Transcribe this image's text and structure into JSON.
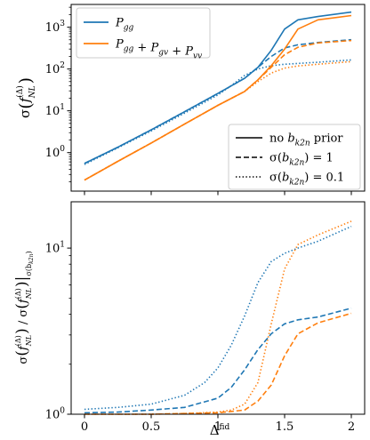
{
  "chart_data": [
    {
      "type": "line",
      "ylabel": "σ(f_NL^(Δ))",
      "yscale": "log",
      "ylim": [
        0.12,
        3500
      ],
      "xlim": [
        -0.1,
        2.1
      ],
      "yticks": [
        {
          "value": 1,
          "base": "10",
          "exp": "0"
        },
        {
          "value": 10,
          "base": "10",
          "exp": "1"
        },
        {
          "value": 100,
          "base": "10",
          "exp": "2"
        },
        {
          "value": 1000,
          "base": "10",
          "exp": "3"
        }
      ],
      "legend_series": [
        {
          "label_main": "P",
          "label_sub": "gg",
          "color": "#1f77b4"
        },
        {
          "label_parts": [
            "P|gg",
            " + ",
            "P|gv",
            " + ",
            "P|vv"
          ],
          "color": "#ff7f0e"
        }
      ],
      "legend_styles": [
        {
          "text": "no b",
          "sub": "k2n",
          "tail": " prior",
          "dash": "solid"
        },
        {
          "text": "σ(b",
          "sub": "k2n",
          "tail": ") = 1",
          "dash": "dashed"
        },
        {
          "text": "σ(b",
          "sub": "k2n",
          "tail": ") = 0.1",
          "dash": "dotted"
        }
      ],
      "legend_placement": "upper-left and lower-right",
      "grid": false,
      "series": [
        {
          "name": "P_gg, no b_k2n prior",
          "color": "#1f77b4",
          "dash": "solid",
          "x": [
            0,
            0.25,
            0.5,
            0.75,
            1.0,
            1.2,
            1.3,
            1.4,
            1.5,
            1.6,
            1.75,
            2.0
          ],
          "y": [
            0.55,
            1.35,
            3.5,
            9.5,
            26,
            60,
            110,
            280,
            900,
            1500,
            1800,
            2300
          ]
        },
        {
          "name": "P_gg, σ(b_k2n)=1",
          "color": "#1f77b4",
          "dash": "dashed",
          "x": [
            0,
            0.25,
            0.5,
            0.75,
            1.0,
            1.2,
            1.3,
            1.4,
            1.5,
            1.6,
            1.75,
            2.0
          ],
          "y": [
            0.55,
            1.35,
            3.5,
            9.5,
            26,
            60,
            110,
            200,
            320,
            380,
            430,
            500
          ]
        },
        {
          "name": "P_gg, σ(b_k2n)=0.1",
          "color": "#1f77b4",
          "dash": "dotted",
          "x": [
            0,
            0.25,
            0.5,
            0.75,
            1.0,
            1.1,
            1.2,
            1.3,
            1.4,
            1.5,
            1.75,
            2.0
          ],
          "y": [
            0.52,
            1.3,
            3.3,
            8.8,
            24,
            40,
            70,
            100,
            120,
            130,
            145,
            165
          ]
        },
        {
          "name": "P_gg+P_gv+P_vv, no b_k2n prior",
          "color": "#ff7f0e",
          "dash": "solid",
          "x": [
            0,
            0.25,
            0.5,
            0.75,
            1.0,
            1.2,
            1.3,
            1.4,
            1.5,
            1.6,
            1.75,
            2.0
          ],
          "y": [
            0.22,
            0.62,
            1.7,
            4.8,
            13.5,
            29,
            55,
            120,
            300,
            900,
            1500,
            1900
          ]
        },
        {
          "name": "P_gg+P_gv+P_vv, σ(b_k2n)=1",
          "color": "#ff7f0e",
          "dash": "dashed",
          "x": [
            0,
            0.25,
            0.5,
            0.75,
            1.0,
            1.2,
            1.3,
            1.4,
            1.5,
            1.6,
            1.75,
            2.0
          ],
          "y": [
            0.22,
            0.62,
            1.7,
            4.8,
            13.5,
            29,
            55,
            110,
            220,
            330,
            420,
            480
          ]
        },
        {
          "name": "P_gg+P_gv+P_vv, σ(b_k2n)=0.1",
          "color": "#ff7f0e",
          "dash": "dotted",
          "x": [
            0,
            0.25,
            0.5,
            0.75,
            1.0,
            1.2,
            1.3,
            1.4,
            1.5,
            1.6,
            1.75,
            2.0
          ],
          "y": [
            0.22,
            0.62,
            1.7,
            4.8,
            13.5,
            29,
            50,
            80,
            105,
            118,
            130,
            150
          ]
        }
      ]
    },
    {
      "type": "line",
      "ylabel": "σ(f_NL^(Δ)) / σ(f_NL^(Δ))|σ(b_k2n)",
      "xlabel": "Δ^fid",
      "xlabel_main": "Δ",
      "xlabel_sup": "fid",
      "yscale": "log",
      "ylim": [
        1,
        19
      ],
      "xlim": [
        -0.1,
        2.1
      ],
      "xticks": [
        "0",
        "0.5",
        "1",
        "1.5",
        "2"
      ],
      "xtick_values": [
        0,
        0.5,
        1,
        1.5,
        2
      ],
      "yticks": [
        {
          "value": 1,
          "base": "10",
          "exp": "0"
        },
        {
          "value": 10,
          "base": "10",
          "exp": "1"
        }
      ],
      "grid": false,
      "series": [
        {
          "name": "P_gg, σ(b_k2n)=1",
          "color": "#1f77b4",
          "dash": "dashed",
          "x": [
            0,
            0.25,
            0.5,
            0.75,
            1.0,
            1.1,
            1.2,
            1.3,
            1.4,
            1.5,
            1.6,
            1.75,
            2.0
          ],
          "y": [
            1.02,
            1.03,
            1.06,
            1.1,
            1.25,
            1.45,
            1.85,
            2.45,
            3.05,
            3.5,
            3.7,
            3.85,
            4.35
          ]
        },
        {
          "name": "P_gg, σ(b_k2n)=0.1",
          "color": "#1f77b4",
          "dash": "dotted",
          "x": [
            0,
            0.25,
            0.5,
            0.75,
            0.9,
            1.0,
            1.1,
            1.2,
            1.3,
            1.4,
            1.5,
            1.6,
            1.75,
            2.0
          ],
          "y": [
            1.07,
            1.1,
            1.15,
            1.3,
            1.55,
            1.9,
            2.6,
            3.9,
            6.2,
            8.3,
            9.3,
            10.0,
            11.0,
            13.5
          ]
        },
        {
          "name": "P_gg+P_gv+P_vv, σ(b_k2n)=1",
          "color": "#ff7f0e",
          "dash": "dashed",
          "x": [
            0,
            0.25,
            0.5,
            0.75,
            1.0,
            1.2,
            1.3,
            1.4,
            1.5,
            1.6,
            1.75,
            2.0
          ],
          "y": [
            1.0,
            1.0,
            1.0,
            1.01,
            1.02,
            1.06,
            1.2,
            1.5,
            2.25,
            3.05,
            3.55,
            4.05
          ]
        },
        {
          "name": "P_gg+P_gv+P_vv, σ(b_k2n)=0.1",
          "color": "#ff7f0e",
          "dash": "dotted",
          "x": [
            0,
            0.25,
            0.5,
            0.75,
            1.0,
            1.1,
            1.2,
            1.3,
            1.4,
            1.5,
            1.6,
            1.75,
            2.0
          ],
          "y": [
            1.0,
            1.0,
            1.0,
            1.01,
            1.03,
            1.06,
            1.15,
            1.55,
            3.5,
            7.5,
            10.5,
            12.0,
            14.5
          ]
        }
      ]
    }
  ]
}
